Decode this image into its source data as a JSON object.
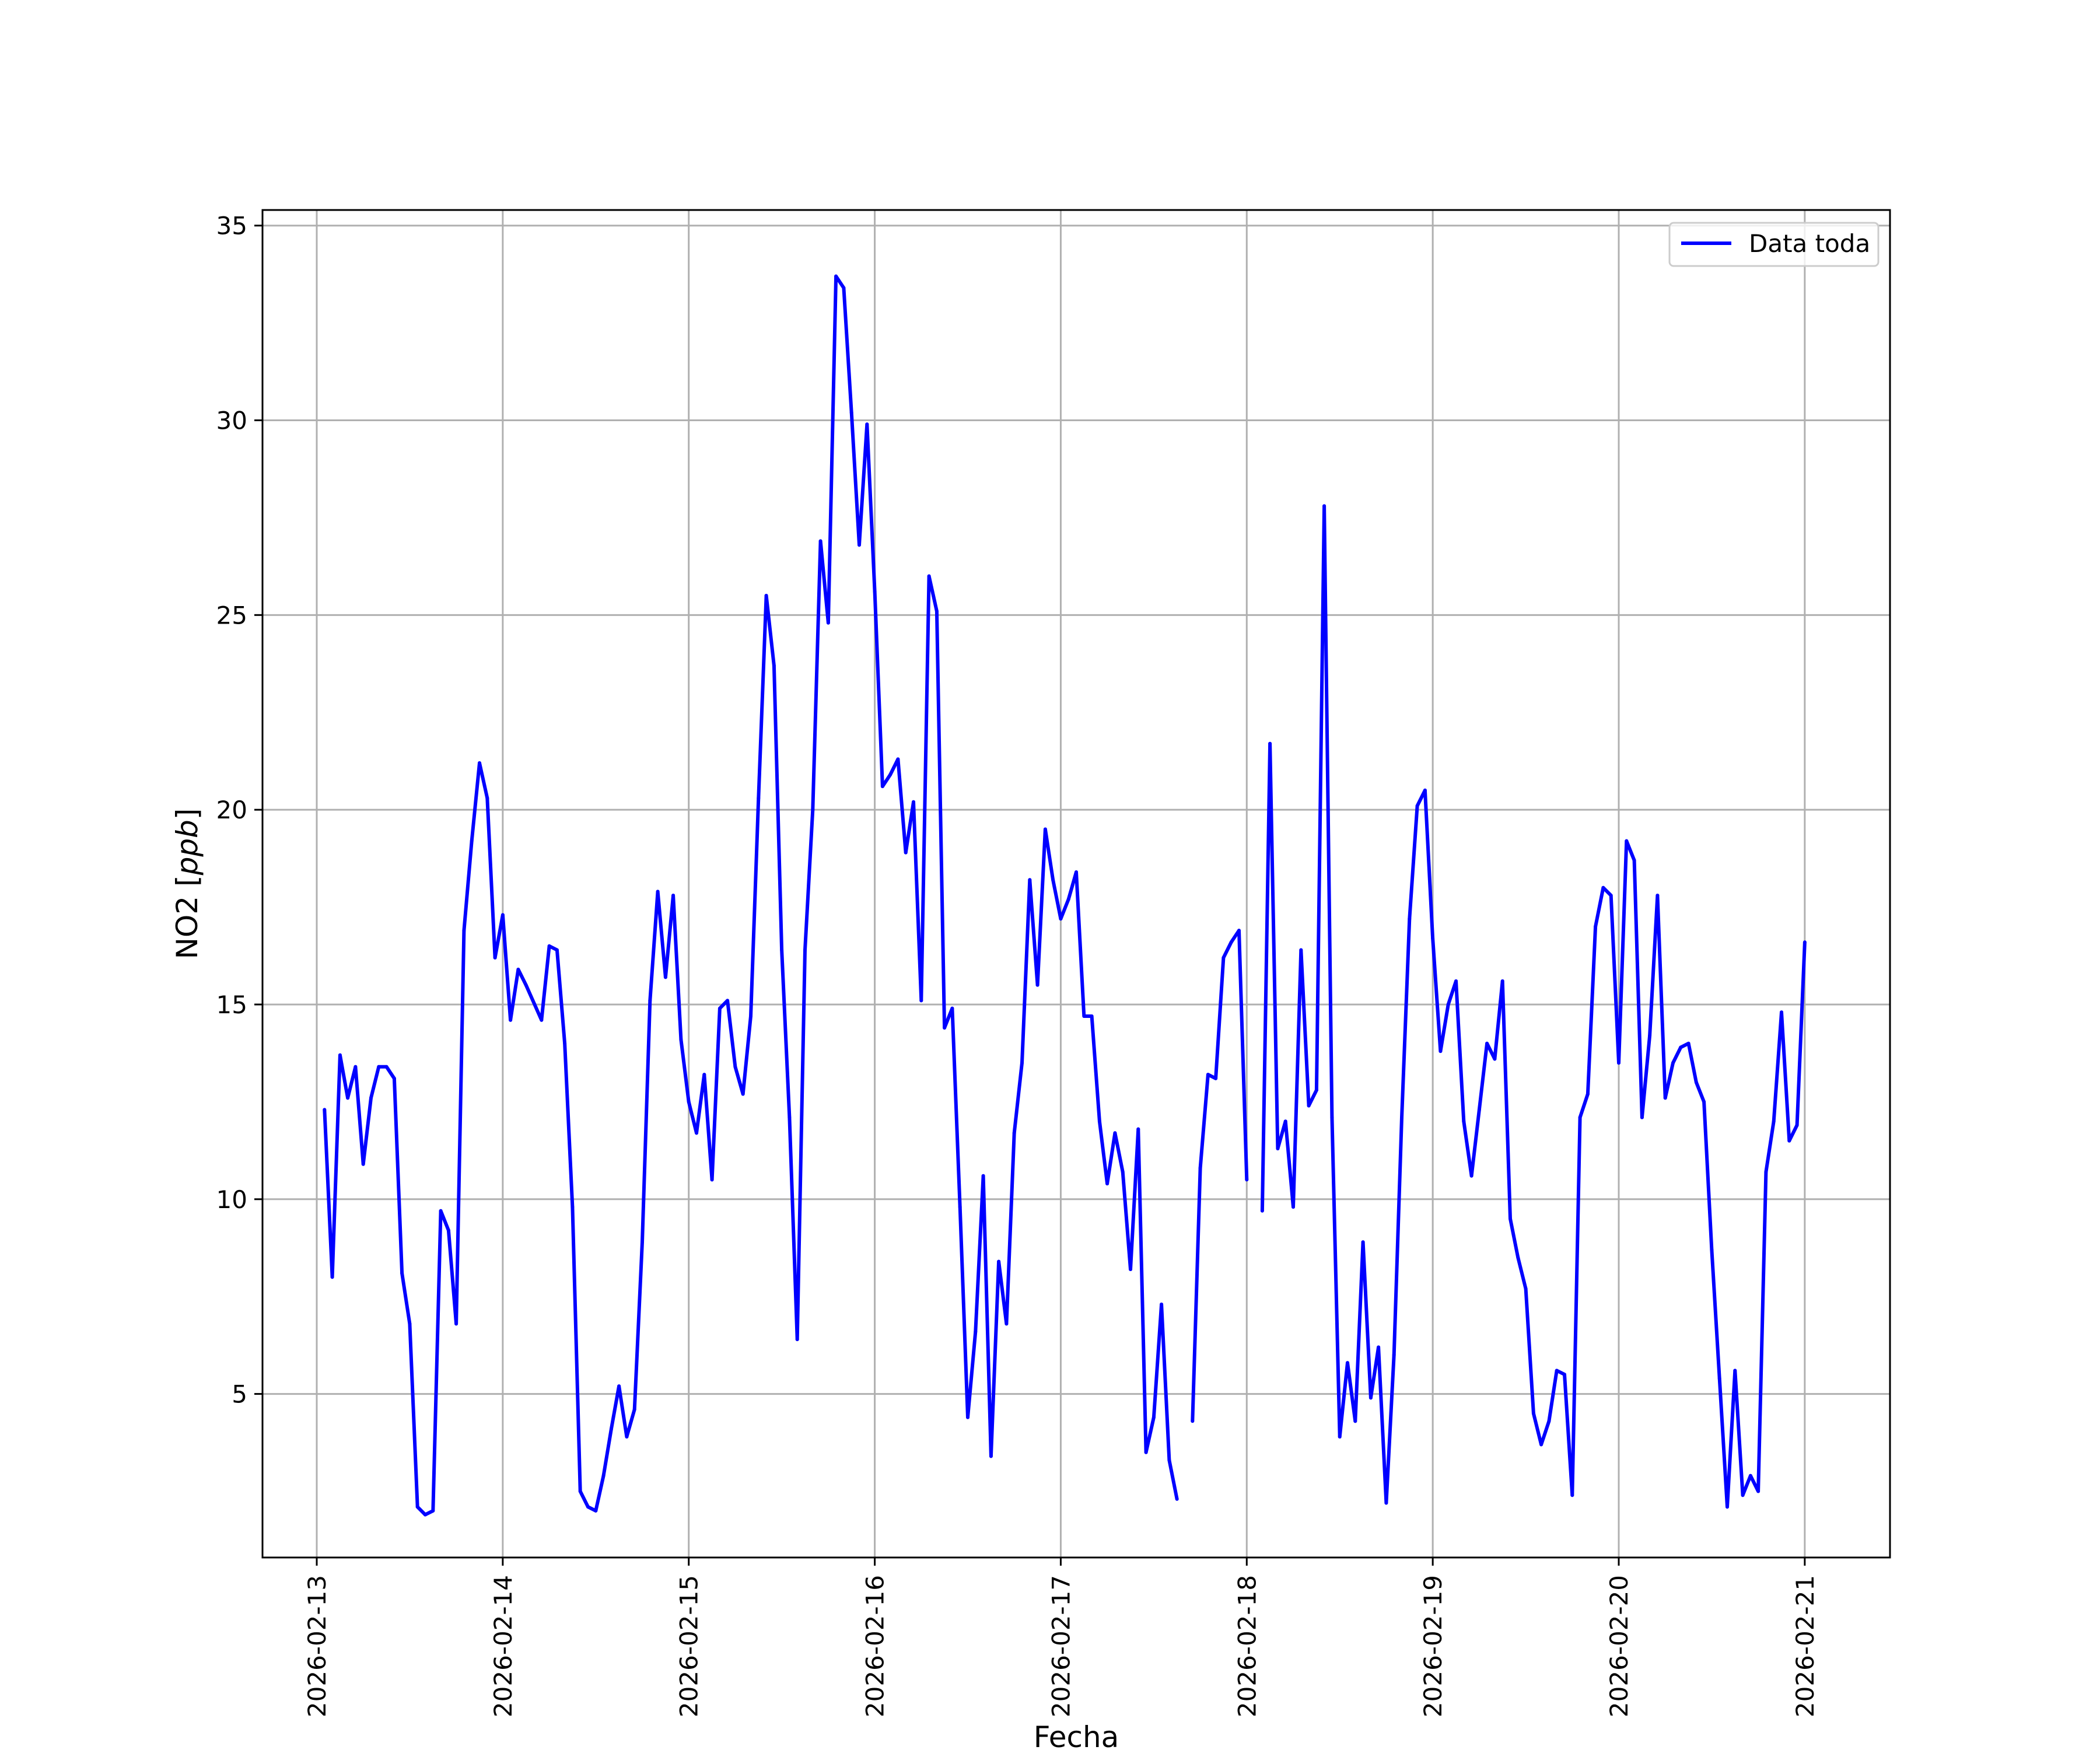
{
  "chart_data": {
    "type": "line",
    "title": "",
    "xlabel": "Fecha",
    "ylabel_main": "NO2 [",
    "ylabel_unit": "ppb",
    "ylabel_close": "]",
    "x_type": "date",
    "xlim": [
      "2026-02-12 17:00",
      "2026-02-21 11:00"
    ],
    "ylim": [
      0.8,
      35.4
    ],
    "x_tick_labels": [
      "2026-02-13",
      "2026-02-14",
      "2026-02-15",
      "2026-02-16",
      "2026-02-17",
      "2026-02-18",
      "2026-02-19",
      "2026-02-20",
      "2026-02-21"
    ],
    "y_ticks": [
      5,
      10,
      15,
      20,
      25,
      30,
      35
    ],
    "y_tick_labels": [
      "5",
      "10",
      "15",
      "20",
      "25",
      "30",
      "35"
    ],
    "grid": true,
    "legend_position": "top-right",
    "series": [
      {
        "name": "Data toda",
        "color": "#0000ff",
        "points": [
          [
            "2026-02-13 01:00",
            12.3
          ],
          [
            "2026-02-13 02:00",
            8.0
          ],
          [
            "2026-02-13 03:00",
            13.7
          ],
          [
            "2026-02-13 04:00",
            12.6
          ],
          [
            "2026-02-13 05:00",
            13.4
          ],
          [
            "2026-02-13 06:00",
            10.9
          ],
          [
            "2026-02-13 07:00",
            12.6
          ],
          [
            "2026-02-13 08:00",
            13.4
          ],
          [
            "2026-02-13 09:00",
            13.4
          ],
          [
            "2026-02-13 10:00",
            13.1
          ],
          [
            "2026-02-13 11:00",
            8.1
          ],
          [
            "2026-02-13 12:00",
            6.8
          ],
          [
            "2026-02-13 13:00",
            2.1
          ],
          [
            "2026-02-13 14:00",
            1.9
          ],
          [
            "2026-02-13 15:00",
            2.0
          ],
          [
            "2026-02-13 16:00",
            9.7
          ],
          [
            "2026-02-13 17:00",
            9.2
          ],
          [
            "2026-02-13 18:00",
            6.8
          ],
          [
            "2026-02-13 19:00",
            16.9
          ],
          [
            "2026-02-13 20:00",
            19.2
          ],
          [
            "2026-02-13 21:00",
            21.2
          ],
          [
            "2026-02-13 22:00",
            20.3
          ],
          [
            "2026-02-13 23:00",
            16.2
          ],
          [
            "2026-02-14 00:00",
            17.3
          ],
          [
            "2026-02-14 01:00",
            14.6
          ],
          [
            "2026-02-14 02:00",
            15.9
          ],
          [
            "2026-02-14 03:00",
            15.5
          ],
          [
            "2026-02-14 05:00",
            14.6
          ],
          [
            "2026-02-14 06:00",
            16.5
          ],
          [
            "2026-02-14 07:00",
            16.4
          ],
          [
            "2026-02-14 08:00",
            14.0
          ],
          [
            "2026-02-14 09:00",
            9.8
          ],
          [
            "2026-02-14 10:00",
            2.5
          ],
          [
            "2026-02-14 11:00",
            2.1
          ],
          [
            "2026-02-14 12:00",
            2.0
          ],
          [
            "2026-02-14 13:00",
            2.9
          ],
          [
            "2026-02-14 14:00",
            4.1
          ],
          [
            "2026-02-14 15:00",
            5.2
          ],
          [
            "2026-02-14 16:00",
            3.9
          ],
          [
            "2026-02-14 17:00",
            4.6
          ],
          [
            "2026-02-14 18:00",
            8.9
          ],
          [
            "2026-02-14 19:00",
            15.1
          ],
          [
            "2026-02-14 20:00",
            17.9
          ],
          [
            "2026-02-14 21:00",
            15.7
          ],
          [
            "2026-02-14 22:00",
            17.8
          ],
          [
            "2026-02-14 23:00",
            14.1
          ],
          [
            "2026-02-15 00:00",
            12.5
          ],
          [
            "2026-02-15 01:00",
            11.7
          ],
          [
            "2026-02-15 02:00",
            13.2
          ],
          [
            "2026-02-15 03:00",
            10.5
          ],
          [
            "2026-02-15 04:00",
            14.9
          ],
          [
            "2026-02-15 05:00",
            15.1
          ],
          [
            "2026-02-15 06:00",
            13.4
          ],
          [
            "2026-02-15 07:00",
            12.7
          ],
          [
            "2026-02-15 08:00",
            14.7
          ],
          [
            "2026-02-15 09:00",
            20.3
          ],
          [
            "2026-02-15 10:00",
            25.5
          ],
          [
            "2026-02-15 11:00",
            23.7
          ],
          [
            "2026-02-15 12:00",
            16.4
          ],
          [
            "2026-02-15 13:00",
            12.1
          ],
          [
            "2026-02-15 14:00",
            6.4
          ],
          [
            "2026-02-15 15:00",
            16.4
          ],
          [
            "2026-02-15 16:00",
            20.0
          ],
          [
            "2026-02-15 17:00",
            26.9
          ],
          [
            "2026-02-15 18:00",
            24.8
          ],
          [
            "2026-02-15 19:00",
            33.7
          ],
          [
            "2026-02-15 20:00",
            33.4
          ],
          [
            "2026-02-15 21:00",
            30.2
          ],
          [
            "2026-02-15 22:00",
            26.8
          ],
          [
            "2026-02-15 23:00",
            29.9
          ],
          [
            "2026-02-16 00:00",
            25.6
          ],
          [
            "2026-02-16 01:00",
            20.6
          ],
          [
            "2026-02-16 02:00",
            20.9
          ],
          [
            "2026-02-16 03:00",
            21.3
          ],
          [
            "2026-02-16 04:00",
            18.9
          ],
          [
            "2026-02-16 05:00",
            20.2
          ],
          [
            "2026-02-16 06:00",
            15.1
          ],
          [
            "2026-02-16 07:00",
            26.0
          ],
          [
            "2026-02-16 08:00",
            25.1
          ],
          [
            "2026-02-16 09:00",
            14.4
          ],
          [
            "2026-02-16 10:00",
            14.9
          ],
          [
            "2026-02-16 11:00",
            9.8
          ],
          [
            "2026-02-16 12:00",
            4.4
          ],
          [
            "2026-02-16 13:00",
            6.6
          ],
          [
            "2026-02-16 14:00",
            10.6
          ],
          [
            "2026-02-16 15:00",
            3.4
          ],
          [
            "2026-02-16 16:00",
            8.4
          ],
          [
            "2026-02-16 17:00",
            6.8
          ],
          [
            "2026-02-16 18:00",
            11.7
          ],
          [
            "2026-02-16 19:00",
            13.5
          ],
          [
            "2026-02-16 20:00",
            18.2
          ],
          [
            "2026-02-16 21:00",
            15.5
          ],
          [
            "2026-02-16 22:00",
            19.5
          ],
          [
            "2026-02-16 23:00",
            18.2
          ],
          [
            "2026-02-17 00:00",
            17.2
          ],
          [
            "2026-02-17 01:00",
            17.7
          ],
          [
            "2026-02-17 02:00",
            18.4
          ],
          [
            "2026-02-17 03:00",
            14.7
          ],
          [
            "2026-02-17 04:00",
            14.7
          ],
          [
            "2026-02-17 05:00",
            12.0
          ],
          [
            "2026-02-17 06:00",
            10.4
          ],
          [
            "2026-02-17 07:00",
            11.7
          ],
          [
            "2026-02-17 08:00",
            10.7
          ],
          [
            "2026-02-17 09:00",
            8.2
          ],
          [
            "2026-02-17 10:00",
            11.8
          ],
          [
            "2026-02-17 11:00",
            3.5
          ],
          [
            "2026-02-17 12:00",
            4.4
          ],
          [
            "2026-02-17 13:00",
            7.3
          ],
          [
            "2026-02-17 14:00",
            3.3
          ],
          [
            "2026-02-17 15:00",
            2.3
          ],
          null,
          [
            "2026-02-17 17:00",
            4.3
          ],
          [
            "2026-02-17 18:00",
            10.8
          ],
          [
            "2026-02-17 19:00",
            13.2
          ],
          [
            "2026-02-17 20:00",
            13.1
          ],
          [
            "2026-02-17 21:00",
            16.2
          ],
          [
            "2026-02-17 22:00",
            16.6
          ],
          [
            "2026-02-17 23:00",
            16.9
          ],
          [
            "2026-02-18 00:00",
            10.5
          ],
          null,
          [
            "2026-02-18 02:00",
            9.7
          ],
          [
            "2026-02-18 03:00",
            21.7
          ],
          [
            "2026-02-18 04:00",
            11.3
          ],
          [
            "2026-02-18 05:00",
            12.0
          ],
          [
            "2026-02-18 06:00",
            9.8
          ],
          [
            "2026-02-18 07:00",
            16.4
          ],
          [
            "2026-02-18 08:00",
            12.4
          ],
          [
            "2026-02-18 09:00",
            12.8
          ],
          [
            "2026-02-18 10:00",
            27.8
          ],
          [
            "2026-02-18 11:00",
            12.1
          ],
          [
            "2026-02-18 12:00",
            3.9
          ],
          [
            "2026-02-18 13:00",
            5.8
          ],
          [
            "2026-02-18 14:00",
            4.3
          ],
          [
            "2026-02-18 15:00",
            8.9
          ],
          [
            "2026-02-18 16:00",
            4.9
          ],
          [
            "2026-02-18 17:00",
            6.2
          ],
          [
            "2026-02-18 18:00",
            2.2
          ],
          [
            "2026-02-18 19:00",
            6.0
          ],
          [
            "2026-02-18 20:00",
            12.1
          ],
          [
            "2026-02-18 21:00",
            17.2
          ],
          [
            "2026-02-18 22:00",
            20.1
          ],
          [
            "2026-02-18 23:00",
            20.5
          ],
          [
            "2026-02-19 00:00",
            16.7
          ],
          [
            "2026-02-19 01:00",
            13.8
          ],
          [
            "2026-02-19 02:00",
            15.0
          ],
          [
            "2026-02-19 03:00",
            15.6
          ],
          [
            "2026-02-19 04:00",
            12.0
          ],
          [
            "2026-02-19 05:00",
            10.6
          ],
          [
            "2026-02-19 06:00",
            12.3
          ],
          [
            "2026-02-19 07:00",
            14.0
          ],
          [
            "2026-02-19 08:00",
            13.6
          ],
          [
            "2026-02-19 09:00",
            15.6
          ],
          [
            "2026-02-19 10:00",
            9.5
          ],
          [
            "2026-02-19 11:00",
            8.5
          ],
          [
            "2026-02-19 12:00",
            7.7
          ],
          [
            "2026-02-19 13:00",
            4.5
          ],
          [
            "2026-02-19 14:00",
            3.7
          ],
          [
            "2026-02-19 15:00",
            4.3
          ],
          [
            "2026-02-19 16:00",
            5.6
          ],
          [
            "2026-02-19 17:00",
            5.5
          ],
          [
            "2026-02-19 18:00",
            2.4
          ],
          [
            "2026-02-19 19:00",
            12.1
          ],
          [
            "2026-02-19 20:00",
            12.7
          ],
          [
            "2026-02-19 21:00",
            17.0
          ],
          [
            "2026-02-19 22:00",
            18.0
          ],
          [
            "2026-02-19 23:00",
            17.8
          ],
          [
            "2026-02-20 00:00",
            13.5
          ],
          [
            "2026-02-20 01:00",
            19.2
          ],
          [
            "2026-02-20 02:00",
            18.7
          ],
          [
            "2026-02-20 03:00",
            12.1
          ],
          [
            "2026-02-20 04:00",
            14.2
          ],
          [
            "2026-02-20 05:00",
            17.8
          ],
          [
            "2026-02-20 06:00",
            12.6
          ],
          [
            "2026-02-20 07:00",
            13.5
          ],
          [
            "2026-02-20 08:00",
            13.9
          ],
          [
            "2026-02-20 09:00",
            14.0
          ],
          [
            "2026-02-20 10:00",
            13.0
          ],
          [
            "2026-02-20 11:00",
            12.5
          ],
          [
            "2026-02-20 12:00",
            8.7
          ],
          [
            "2026-02-20 13:00",
            5.4
          ],
          [
            "2026-02-20 14:00",
            2.1
          ],
          [
            "2026-02-20 15:00",
            5.6
          ],
          [
            "2026-02-20 16:00",
            2.4
          ],
          [
            "2026-02-20 17:00",
            2.9
          ],
          [
            "2026-02-20 18:00",
            2.5
          ],
          [
            "2026-02-20 19:00",
            10.7
          ],
          [
            "2026-02-20 20:00",
            12.0
          ],
          [
            "2026-02-20 21:00",
            14.8
          ],
          [
            "2026-02-20 22:00",
            11.5
          ],
          [
            "2026-02-20 23:00",
            11.9
          ],
          [
            "2026-02-21 00:00",
            16.6
          ]
        ]
      }
    ]
  }
}
